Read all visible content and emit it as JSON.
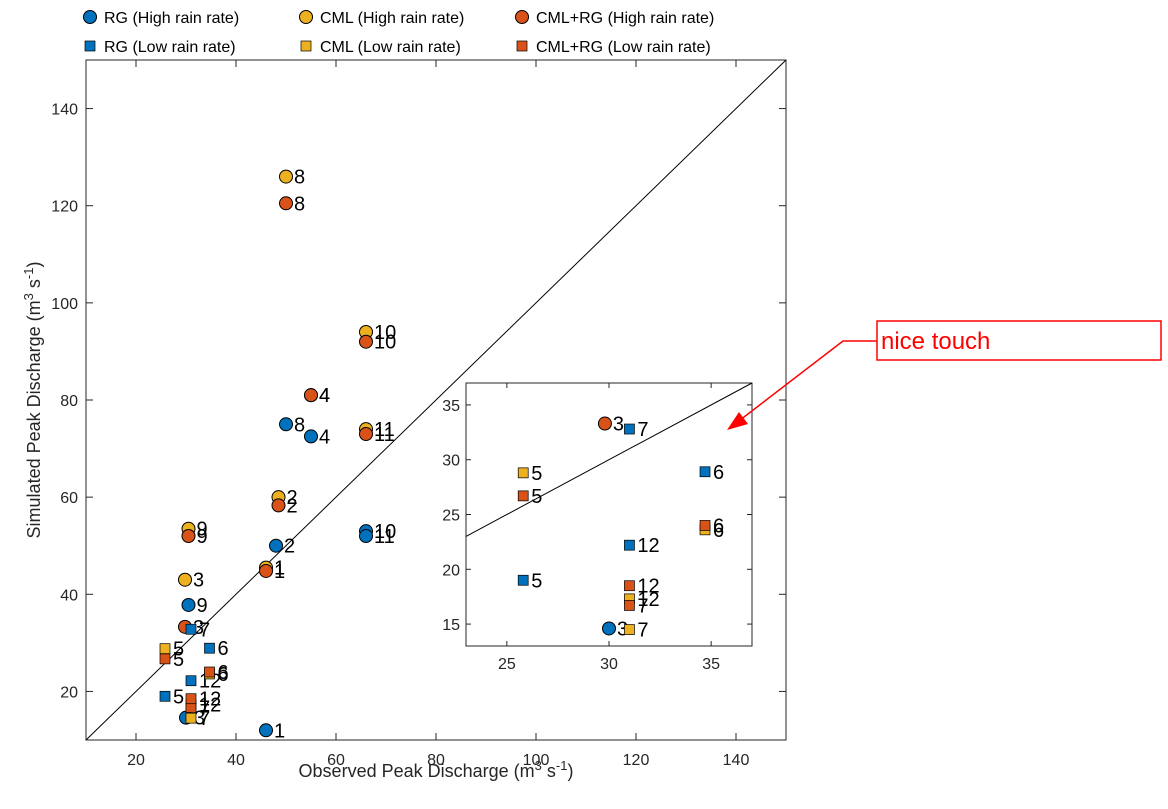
{
  "chart_data": {
    "type": "scatter",
    "xlabel": "Observed Peak Discharge (m",
    "xlabel_sup1": "3",
    "xlabel_mid": " s",
    "xlabel_sup2": "-1",
    "xlabel_end": ")",
    "ylabel": "Simulated Peak Discharge (m",
    "ylabel_sup1": "3",
    "ylabel_mid": " s",
    "ylabel_sup2": "-1",
    "ylabel_end": ")",
    "xlim": [
      10,
      150
    ],
    "ylim": [
      10,
      150
    ],
    "xticks": [
      20,
      40,
      60,
      80,
      100,
      120,
      140
    ],
    "yticks": [
      20,
      40,
      60,
      80,
      100,
      120,
      140
    ],
    "grid": false,
    "reference_line": "1:1",
    "legend_position": "top",
    "series": [
      {
        "name": "RG (High rain rate)",
        "marker": "circle",
        "color": "#0072BD",
        "points": [
          {
            "x": 46,
            "y": 12,
            "label": "1"
          },
          {
            "x": 48,
            "y": 50,
            "label": "2"
          },
          {
            "x": 30,
            "y": 14.6,
            "label": "3"
          },
          {
            "x": 55,
            "y": 72.5,
            "label": "4"
          },
          {
            "x": 50,
            "y": 75,
            "label": "8"
          },
          {
            "x": 30.5,
            "y": 37.8,
            "label": "9"
          },
          {
            "x": 66,
            "y": 53,
            "label": "10"
          },
          {
            "x": 66,
            "y": 52,
            "label": "11"
          }
        ]
      },
      {
        "name": "CML (High rain rate)",
        "marker": "circle",
        "color": "#EDB120",
        "points": [
          {
            "x": 46,
            "y": 45.5,
            "label": "1"
          },
          {
            "x": 48.5,
            "y": 60,
            "label": "2"
          },
          {
            "x": 29.8,
            "y": 43,
            "label": "3"
          },
          {
            "x": 55,
            "y": 81,
            "label": "4"
          },
          {
            "x": 50,
            "y": 126,
            "label": "8"
          },
          {
            "x": 30.5,
            "y": 53.5,
            "label": "9"
          },
          {
            "x": 66,
            "y": 94,
            "label": "10"
          },
          {
            "x": 66,
            "y": 74,
            "label": "11"
          }
        ]
      },
      {
        "name": "CML+RG (High rain rate)",
        "marker": "circle",
        "color": "#D95319",
        "points": [
          {
            "x": 46,
            "y": 44.8,
            "label": "1"
          },
          {
            "x": 48.5,
            "y": 58.3,
            "label": "2"
          },
          {
            "x": 29.8,
            "y": 33.3,
            "label": "3"
          },
          {
            "x": 55,
            "y": 81,
            "label": "4"
          },
          {
            "x": 50,
            "y": 120.5,
            "label": "8"
          },
          {
            "x": 30.5,
            "y": 52,
            "label": "9"
          },
          {
            "x": 66,
            "y": 92,
            "label": "10"
          },
          {
            "x": 66,
            "y": 73,
            "label": "11"
          }
        ]
      },
      {
        "name": "RG (Low rain rate)",
        "marker": "square",
        "color": "#0072BD",
        "points": [
          {
            "x": 25.8,
            "y": 19,
            "label": "5"
          },
          {
            "x": 34.7,
            "y": 28.9,
            "label": "6"
          },
          {
            "x": 31,
            "y": 32.8,
            "label": "7"
          },
          {
            "x": 31,
            "y": 22.2,
            "label": "12"
          }
        ]
      },
      {
        "name": "CML (Low rain rate)",
        "marker": "square",
        "color": "#EDB120",
        "points": [
          {
            "x": 25.8,
            "y": 28.8,
            "label": "5"
          },
          {
            "x": 34.7,
            "y": 23.6,
            "label": "6"
          },
          {
            "x": 31,
            "y": 14.5,
            "label": "7"
          },
          {
            "x": 31,
            "y": 17.3,
            "label": "12"
          }
        ]
      },
      {
        "name": "CML+RG (Low rain rate)",
        "marker": "square",
        "color": "#D95319",
        "points": [
          {
            "x": 25.8,
            "y": 26.7,
            "label": "5"
          },
          {
            "x": 34.7,
            "y": 24,
            "label": "6"
          },
          {
            "x": 31,
            "y": 16.7,
            "label": "7"
          },
          {
            "x": 31,
            "y": 18.5,
            "label": "12"
          }
        ]
      }
    ],
    "inset": {
      "xlim": [
        23,
        37
      ],
      "ylim": [
        13,
        37
      ],
      "xticks": [
        25,
        30,
        35
      ],
      "yticks": [
        15,
        20,
        25,
        30,
        35
      ]
    },
    "annotation": {
      "text": "nice touch",
      "color": "#ff0000"
    }
  }
}
